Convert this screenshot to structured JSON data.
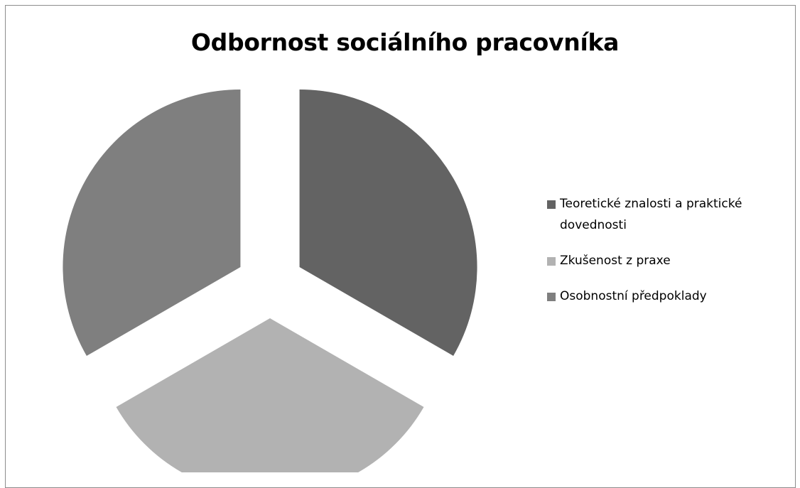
{
  "chart_data": {
    "type": "pie",
    "title": "Odbornost sociálního pracovníka",
    "legend_position": "right",
    "exploded": true,
    "slices": [
      {
        "label": "Teoretické znalosti a praktické dovednosti",
        "value": 33.3,
        "color": "#636363"
      },
      {
        "label": "Zkušenost z praxe",
        "value": 33.3,
        "color": "#b2b2b2"
      },
      {
        "label": "Osobnostní předpoklady",
        "value": 33.3,
        "color": "#7f7f7f"
      }
    ]
  }
}
